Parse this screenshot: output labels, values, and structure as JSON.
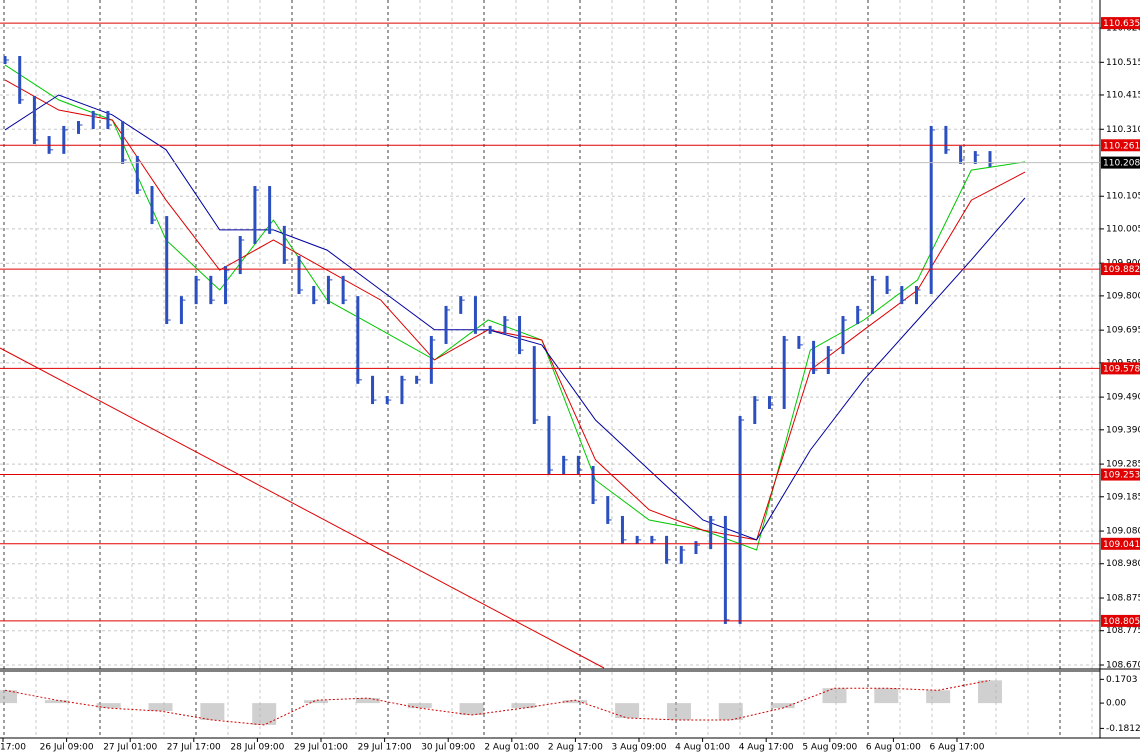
{
  "chart_data": {
    "type": "line",
    "ylim": [
      108.67,
      110.62
    ],
    "yticks": [
      {
        "value": 110.62,
        "label": "110.620"
      },
      110.515,
      110.415,
      {
        "value": 110.31,
        "label": "110.310"
      },
      110.105,
      110.005,
      {
        "value": 109.9,
        "label": "109.900"
      },
      {
        "value": 109.8,
        "label": "109.800"
      },
      109.695,
      109.595,
      {
        "value": 109.49,
        "label": "109.490"
      },
      {
        "value": 109.39,
        "label": "109.390"
      },
      109.285,
      109.185,
      {
        "value": 109.08,
        "label": "109.080"
      },
      {
        "value": 108.98,
        "label": "108.980"
      },
      108.875,
      108.775,
      {
        "value": 108.67,
        "label": "108.670"
      }
    ],
    "levels": [
      110.635,
      110.261,
      109.882,
      109.578,
      109.253,
      109.041,
      108.805
    ],
    "level_color": "#e00000",
    "current_price": 110.208,
    "x_labels": [
      "17:00",
      "26 Jul 09:00",
      "27 Jul 01:00",
      "27 Jul 17:00",
      "28 Jul 09:00",
      "29 Jul 01:00",
      "29 Jul 17:00",
      "30 Jul 09:00",
      "2 Aug 01:00",
      "2 Aug 17:00",
      "3 Aug 09:00",
      "4 Aug 01:00",
      "4 Aug 17:00",
      "5 Aug 09:00",
      "6 Aug 01:00",
      "6 Aug 17:00"
    ],
    "series": [
      {
        "color": "#2c4fc0",
        "values": [
          110.522,
          110.4,
          110.277,
          110.247,
          110.308,
          110.323,
          110.354,
          110.323,
          110.216,
          110.124,
          110.032,
          109.726,
          109.787,
          109.849,
          109.787,
          109.879,
          109.971,
          110.124,
          110.002,
          109.91,
          109.818,
          109.787,
          109.849,
          109.787,
          109.543,
          109.481,
          109.481,
          109.543,
          109.543,
          109.665,
          109.757,
          109.787,
          109.696,
          109.696,
          109.726,
          109.634,
          109.42,
          109.267,
          109.298,
          109.267,
          109.175,
          109.114,
          109.053,
          109.053,
          109.053,
          108.992,
          109.022,
          109.037,
          109.114,
          108.808,
          109.42,
          109.481,
          109.466,
          109.665,
          109.65,
          109.573,
          109.634,
          109.726,
          109.757,
          109.849,
          109.818,
          109.787,
          109.818,
          110.308,
          110.247,
          110.216,
          110.231,
          110.207
        ]
      }
    ],
    "indicators": [
      {
        "color": "#00c800",
        "values": [
          110.507,
          110.4,
          110.338,
          109.971,
          109.818,
          110.032,
          109.787,
          109.696,
          109.604,
          109.726,
          109.665,
          109.236,
          109.114,
          109.083,
          109.022,
          109.634,
          109.726,
          109.849,
          110.185,
          110.21
        ]
      },
      {
        "color": "#dd0000",
        "values": [
          110.461,
          110.369,
          110.338,
          110.093,
          109.879,
          109.971,
          109.879,
          109.787,
          109.604,
          109.696,
          109.665,
          109.298,
          109.145,
          109.083,
          109.053,
          109.573,
          109.696,
          109.818,
          110.093,
          110.179
        ]
      },
      {
        "color": "#0000a0",
        "values": [
          110.308,
          110.415,
          110.354,
          110.247,
          110.002,
          110.002,
          109.94,
          109.818,
          109.696,
          109.696,
          109.65,
          109.42,
          109.267,
          109.114,
          109.053,
          109.328,
          109.543,
          109.726,
          109.91,
          110.1
        ]
      }
    ],
    "oscillator": {
      "ylim": [
        -0.25,
        0.23
      ],
      "yticks": [
        0.1703,
        {
          "value": 0,
          "label": "0.00"
        },
        -0.1812
      ],
      "bar_color": "#b0b0b0",
      "line_color": "#d00000",
      "values": [
        0.092,
        0.021,
        -0.036,
        -0.057,
        -0.121,
        -0.156,
        0.021,
        0.036,
        -0.036,
        -0.085,
        -0.036,
        0.021,
        -0.107,
        -0.121,
        -0.121,
        -0.036,
        0.107,
        0.107,
        0.092,
        0.163
      ]
    }
  }
}
